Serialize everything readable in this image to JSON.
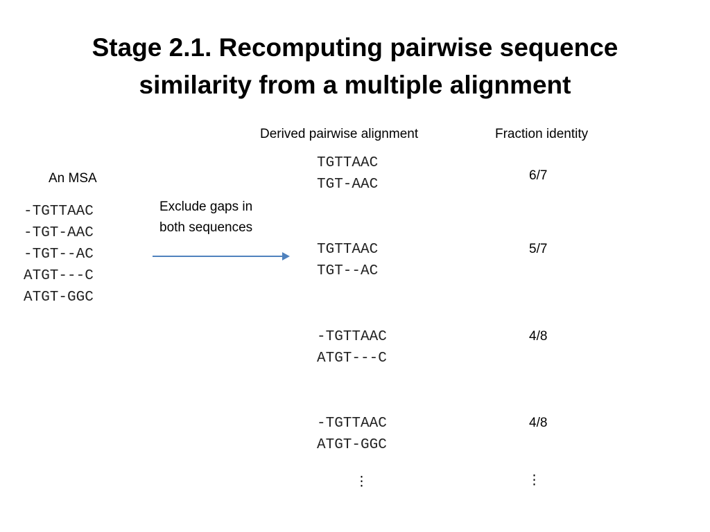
{
  "title": [
    "Stage 2.1. Recomputing pairwise sequence",
    "similarity from a multiple alignment"
  ],
  "msa": {
    "label": "An MSA",
    "rows": [
      "-TGTTAAC",
      "-TGT-AAC",
      "-TGT--AC",
      "ATGT---C",
      "ATGT-GGC"
    ]
  },
  "arrow_label": [
    "Exclude gaps in",
    "both sequences"
  ],
  "headers": {
    "pairwise": "Derived pairwise alignment",
    "identity": "Fraction identity"
  },
  "pairs": [
    {
      "rows": [
        "TGTTAAC",
        "TGT-AAC"
      ],
      "identity": "6/7"
    },
    {
      "rows": [
        "TGTTAAC",
        "TGT--AC"
      ],
      "identity": "5/7"
    },
    {
      "rows": [
        "-TGTTAAC",
        "ATGT---C"
      ],
      "identity": "4/8"
    },
    {
      "rows": [
        "-TGTTAAC",
        "ATGT-GGC"
      ],
      "identity": "4/8"
    }
  ],
  "ellipsis": "⋮"
}
